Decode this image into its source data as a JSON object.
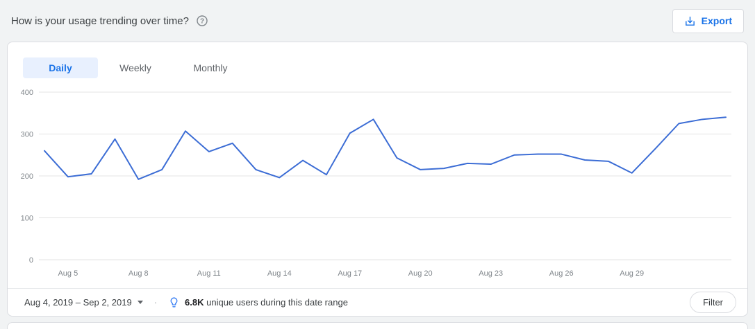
{
  "page": {
    "title": "How is your usage trending over time?",
    "export_label": "Export"
  },
  "tabs": [
    {
      "label": "Daily",
      "active": true
    },
    {
      "label": "Weekly",
      "active": false
    },
    {
      "label": "Monthly",
      "active": false
    }
  ],
  "chart_data": {
    "type": "line",
    "title": "",
    "x": [
      "Aug 4",
      "Aug 5",
      "Aug 6",
      "Aug 7",
      "Aug 8",
      "Aug 9",
      "Aug 10",
      "Aug 11",
      "Aug 12",
      "Aug 13",
      "Aug 14",
      "Aug 15",
      "Aug 16",
      "Aug 17",
      "Aug 18",
      "Aug 19",
      "Aug 20",
      "Aug 21",
      "Aug 22",
      "Aug 23",
      "Aug 24",
      "Aug 25",
      "Aug 26",
      "Aug 27",
      "Aug 28",
      "Aug 29",
      "Aug 30",
      "Aug 31",
      "Sep 1",
      "Sep 2"
    ],
    "values": [
      260,
      198,
      205,
      288,
      192,
      215,
      307,
      258,
      278,
      215,
      196,
      237,
      203,
      302,
      335,
      243,
      215,
      218,
      230,
      228,
      250,
      252,
      252,
      238,
      235,
      207,
      265,
      325,
      335,
      340
    ],
    "xtick_labels": [
      "Aug 5",
      "Aug 8",
      "Aug 11",
      "Aug 14",
      "Aug 17",
      "Aug 20",
      "Aug 23",
      "Aug 26",
      "Aug 29"
    ],
    "yticks": [
      0,
      100,
      200,
      300,
      400
    ],
    "ylim": [
      0,
      400
    ],
    "xlabel": "",
    "ylabel": "",
    "grid": true,
    "legend": "none",
    "line_color": "#3c6dd5",
    "grid_color": "#e3e3e3"
  },
  "footer": {
    "date_range": "Aug 4, 2019 – Sep 2, 2019",
    "separator": "·",
    "insight_value": "6.8K",
    "insight_text": "unique users during this date range",
    "filter_label": "Filter"
  },
  "colors": {
    "accent_blue": "#1a73e8",
    "active_tab_bg": "#e8f0fe",
    "bulb_blue": "#4285f4",
    "page_bg": "#f1f3f4"
  }
}
